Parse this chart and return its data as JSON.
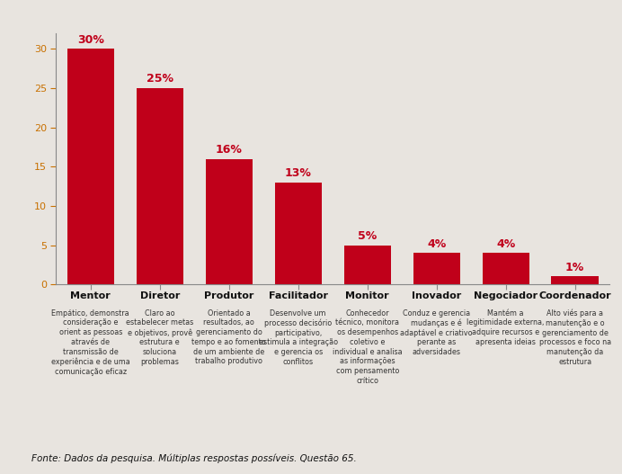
{
  "categories": [
    "Mentor",
    "Diretor",
    "Produtor",
    "Facilitador",
    "Monitor",
    "Inovador",
    "Negociador",
    "Coordenador"
  ],
  "values": [
    30,
    25,
    16,
    13,
    5,
    4,
    4,
    1
  ],
  "labels": [
    "30%",
    "25%",
    "16%",
    "13%",
    "5%",
    "4%",
    "4%",
    "1%"
  ],
  "bar_color": "#c0001a",
  "label_color": "#c0001a",
  "background_color": "#e8e4df",
  "ytick_color": "#c87000",
  "ylim": [
    0,
    32
  ],
  "yticks": [
    0,
    5,
    10,
    15,
    20,
    25,
    30
  ],
  "descriptions": [
    "Empático, demonstra\nconsideração e\norient as pessoas\natravés de\ntransmissão de\nexperiência e de uma\ncomunicação eficaz",
    "Claro ao\nestabelecer metas\ne objetivos, provê\nestrutura e\nsoluciona\nproblemas",
    "Orientado a\nresultados, ao\ngerenciamento do\ntempo e ao fomento\nde um ambiente de\ntrabalho produtivo",
    "Desenvolve um\nprocesso decisório\nparticipativo,\nestimula a integração\ne gerencia os\nconflitos",
    "Conhecedor\ntécnico, monitora\nos desempenhos\ncoletivo e\nindividual e analisa\nas informações\ncom pensamento\ncrítico",
    "Conduz e gerencia\nmudanças e é\nadaptável e criativo\nperante as\nadversidades",
    "Mantém a\nlegitimidade externa,\nadquire recursos e\napresenta ideias",
    "Alto viés para a\nmanutenção e o\ngerenciamento de\nprocessos e foco na\nmanutenção da\nestrutura"
  ],
  "footer": "Fonte: Dados da pesquisa. Múltiplas respostas possíveis. Questão 65.",
  "cat_fontsize": 8,
  "desc_fontsize": 5.8,
  "footer_fontsize": 7.5,
  "label_fontsize": 9,
  "ytick_fontsize": 8
}
